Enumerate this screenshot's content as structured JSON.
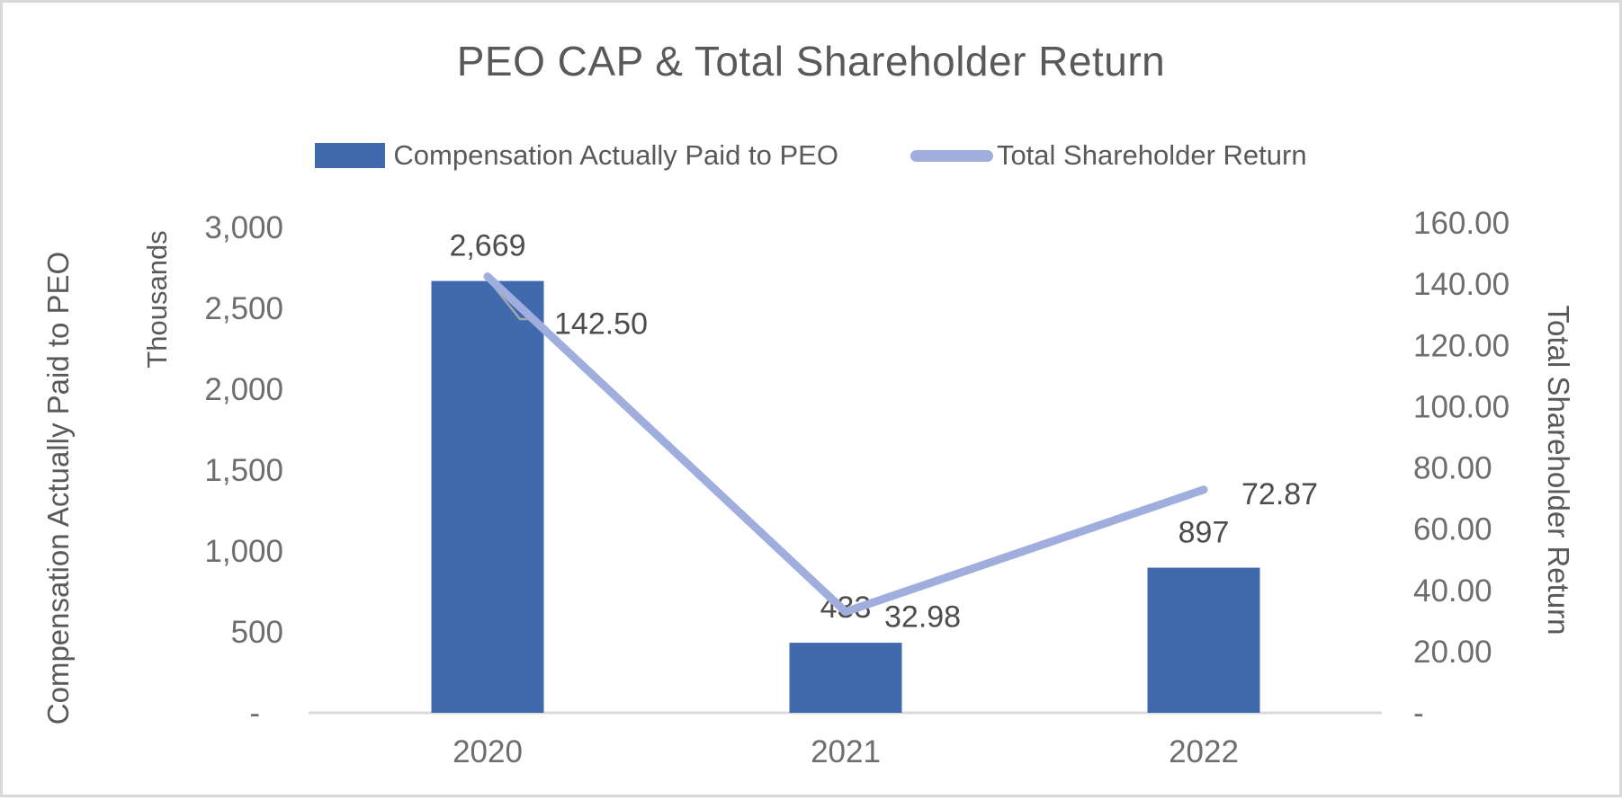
{
  "chart_data": {
    "type": "combo-bar-line",
    "title": "PEO CAP & Total Shareholder Return",
    "categories": [
      "2020",
      "2021",
      "2022"
    ],
    "series": [
      {
        "name": "Compensation Actually Paid to PEO",
        "type": "bar",
        "axis": "left",
        "values": [
          2669,
          433,
          897
        ],
        "data_labels": [
          "2,669",
          "433",
          "897"
        ],
        "color": "#4169AE"
      },
      {
        "name": "Total Shareholder Return",
        "type": "line",
        "axis": "right",
        "values": [
          142.5,
          32.98,
          72.87
        ],
        "data_labels": [
          "142.50",
          "32.98",
          "72.87"
        ],
        "color": "#A0AEDE"
      }
    ],
    "left_axis": {
      "title": "Compensation Actually Paid to PEO",
      "units_label": "Thousands",
      "tick_labels": [
        "3,000",
        "2,500",
        "2,000",
        "1,500",
        "1,000",
        "500",
        "-"
      ],
      "tick_values": [
        3000,
        2500,
        2000,
        1500,
        1000,
        500,
        0
      ],
      "min": 0,
      "max": 3000
    },
    "right_axis": {
      "title": "Total Shareholder Return",
      "tick_labels": [
        "160.00",
        "140.00",
        "120.00",
        "100.00",
        "80.00",
        "60.00",
        "40.00",
        "20.00",
        "-"
      ],
      "tick_values": [
        160,
        140,
        120,
        100,
        80,
        60,
        40,
        20,
        0
      ],
      "min": 0,
      "max": 160
    },
    "legend_position": "top",
    "grid": false
  },
  "colors": {
    "bar": "#4169AE",
    "line": "#A0AEDE",
    "axis_line": "#D9D9D9",
    "leader_line": "#A6A6A6",
    "title_text": "#595959",
    "tick_text": "#6e6e6e",
    "data_label_text": "#4d4d4d",
    "border": "#d8d9db"
  }
}
